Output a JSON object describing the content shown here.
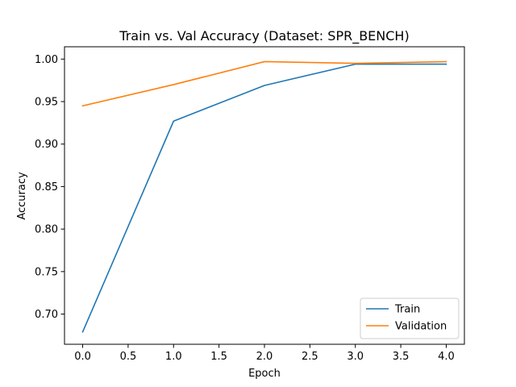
{
  "chart_data": {
    "type": "line",
    "title": "Train vs. Val Accuracy (Dataset: SPR_BENCH)",
    "xlabel": "Epoch",
    "ylabel": "Accuracy",
    "x": [
      0,
      1,
      2,
      3,
      4
    ],
    "xlim": [
      -0.2,
      4.2
    ],
    "ylim": [
      0.6645,
      1.0145
    ],
    "xticks": [
      0.0,
      0.5,
      1.0,
      1.5,
      2.0,
      2.5,
      3.0,
      3.5,
      4.0
    ],
    "xtick_labels": [
      "0.0",
      "0.5",
      "1.0",
      "1.5",
      "2.0",
      "2.5",
      "3.0",
      "3.5",
      "4.0"
    ],
    "yticks": [
      0.7,
      0.75,
      0.8,
      0.85,
      0.9,
      0.95,
      1.0
    ],
    "ytick_labels": [
      "0.70",
      "0.75",
      "0.80",
      "0.85",
      "0.90",
      "0.95",
      "1.00"
    ],
    "grid": false,
    "legend_position": "lower-right",
    "series": [
      {
        "name": "Train",
        "color": "#1f77b4",
        "values": [
          0.679,
          0.927,
          0.969,
          0.994,
          0.994
        ]
      },
      {
        "name": "Validation",
        "color": "#ff7f0e",
        "values": [
          0.945,
          0.97,
          0.997,
          0.995,
          0.997
        ]
      }
    ]
  }
}
